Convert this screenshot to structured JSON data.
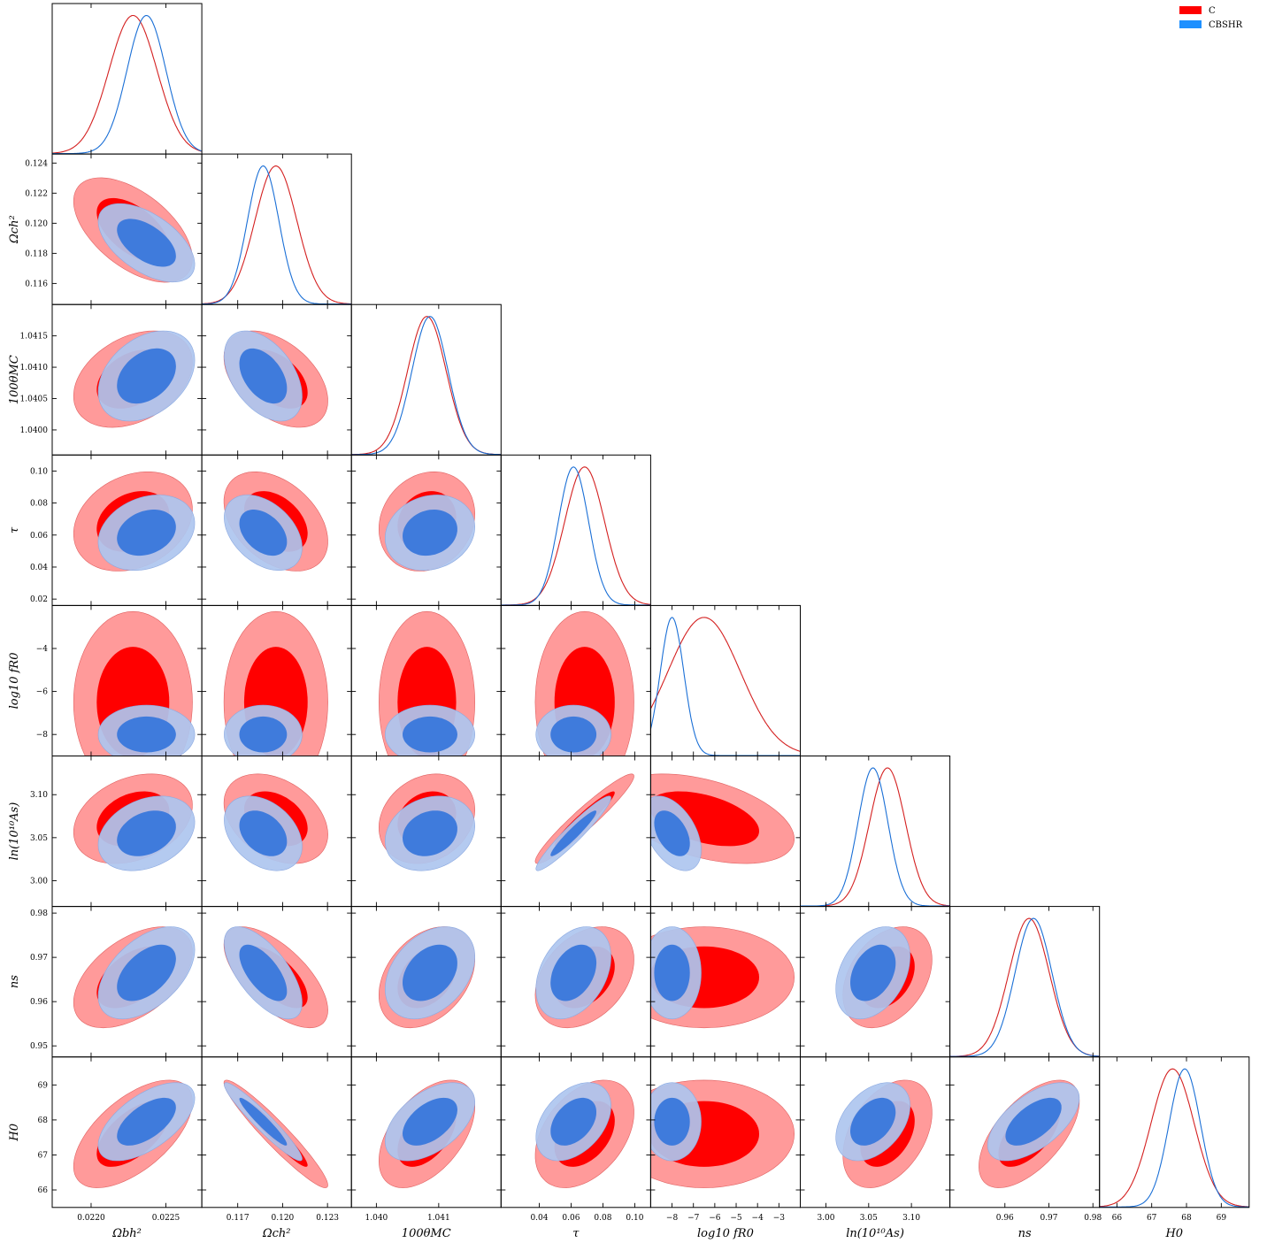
{
  "chart_data": {
    "type": "triangle",
    "legend": {
      "placement": "top-right",
      "entries": [
        {
          "name": "C",
          "color": "#ff0000",
          "fill_2sigma": "#ff9a9a"
        },
        {
          "name": "CBSHR",
          "color": "#1e90ff",
          "fill_2sigma": "#aec6ef",
          "fill_1sigma": "#3f7bdc"
        }
      ]
    },
    "parameters": [
      {
        "key": "omb",
        "label": "Ωbh²",
        "range": [
          0.02174,
          0.02274
        ],
        "ticks": [
          0.022,
          0.0225
        ],
        "tick_labels": [
          "0.0220",
          "0.0225"
        ]
      },
      {
        "key": "omc",
        "label": "Ωch²",
        "range": [
          0.1146,
          0.1246
        ],
        "ticks": [
          0.116,
          0.118,
          0.12,
          0.122,
          0.124
        ],
        "tick_labels": [
          "0.116",
          "0.118",
          "0.120",
          "0.122",
          "0.124"
        ],
        "xticks": [
          0.117,
          0.12,
          0.123
        ],
        "xtick_labels": [
          "0.117",
          "0.120",
          "0.123"
        ]
      },
      {
        "key": "theta",
        "label": "100θMC",
        "range": [
          1.0396,
          1.042
        ],
        "ticks": [
          1.04,
          1.0405,
          1.041,
          1.0415
        ],
        "tick_labels": [
          "1.0400",
          "1.0405",
          "1.0410",
          "1.0415"
        ],
        "xticks": [
          1.04,
          1.041
        ],
        "xtick_labels": [
          "1.040",
          "1.041"
        ]
      },
      {
        "key": "tau",
        "label": "τ",
        "range": [
          0.016,
          0.11
        ],
        "ticks": [
          0.02,
          0.04,
          0.06,
          0.08,
          0.1
        ],
        "tick_labels": [
          "0.02",
          "0.04",
          "0.06",
          "0.08",
          "0.10"
        ],
        "xticks": [
          0.04,
          0.06,
          0.08,
          0.1
        ],
        "xtick_labels": [
          "0.04",
          "0.06",
          "0.08",
          "0.10"
        ]
      },
      {
        "key": "fr0",
        "label": "log10 fR0",
        "range": [
          -9,
          -2
        ],
        "ticks": [
          -8,
          -6,
          -4
        ],
        "tick_labels": [
          "−8",
          "−6",
          "−4"
        ],
        "xticks": [
          -8,
          -7,
          -6,
          -5,
          -4,
          -3
        ],
        "xtick_labels": [
          "−8",
          "−7",
          "−6",
          "−5",
          "−4",
          "−3"
        ]
      },
      {
        "key": "as",
        "label": "ln(10¹⁰As)",
        "range": [
          2.97,
          3.145
        ],
        "ticks": [
          3.0,
          3.05,
          3.1
        ],
        "tick_labels": [
          "3.00",
          "3.05",
          "3.10"
        ]
      },
      {
        "key": "ns",
        "label": "ns",
        "range": [
          0.9475,
          0.9815
        ],
        "ticks": [
          0.95,
          0.96,
          0.97,
          0.98
        ],
        "tick_labels": [
          "0.95",
          "0.96",
          "0.97",
          "0.98"
        ],
        "xticks": [
          0.96,
          0.97,
          0.98
        ],
        "xtick_labels": [
          "0.96",
          "0.97",
          "0.98"
        ]
      },
      {
        "key": "h0",
        "label": "H0",
        "range": [
          65.5,
          69.8
        ],
        "ticks": [
          66,
          67,
          68,
          69
        ],
        "tick_labels": [
          "66",
          "67",
          "68",
          "69"
        ]
      }
    ],
    "samples": {
      "C": {
        "means": [
          0.02228,
          0.11955,
          1.04081,
          0.0685,
          -6.5,
          3.072,
          0.9655,
          67.6
        ],
        "sds": [
          0.00016,
          0.0014,
          0.00031,
          0.0125,
          1.7,
          0.021,
          0.0046,
          0.62
        ]
      },
      "CBSHR": {
        "means": [
          0.02237,
          0.1187,
          1.04086,
          0.0615,
          -8.0,
          3.055,
          0.9665,
          67.95
        ],
        "sds": [
          0.00013,
          0.00105,
          0.00029,
          0.0095,
          0.55,
          0.0175,
          0.0042,
          0.45
        ]
      }
    },
    "correlations": [
      [
        1,
        -0.55,
        0.35,
        0.25,
        0.0,
        0.3,
        0.5,
        0.6
      ],
      [
        -0.55,
        1,
        -0.45,
        -0.4,
        0.0,
        -0.35,
        -0.65,
        -0.95
      ],
      [
        0.35,
        -0.45,
        1,
        0.15,
        0.0,
        0.2,
        0.35,
        0.5
      ],
      [
        0.25,
        -0.4,
        0.15,
        1,
        0.0,
        0.95,
        0.35,
        0.4
      ],
      [
        0.0,
        0.0,
        0.0,
        0.0,
        1,
        -0.45,
        0.0,
        0.0
      ],
      [
        0.3,
        -0.35,
        0.2,
        0.95,
        -0.45,
        1,
        0.35,
        0.4
      ],
      [
        0.5,
        -0.65,
        0.35,
        0.35,
        0.0,
        0.35,
        1,
        0.6
      ],
      [
        0.6,
        -0.95,
        0.5,
        0.4,
        0.0,
        0.4,
        0.6,
        1
      ]
    ]
  }
}
